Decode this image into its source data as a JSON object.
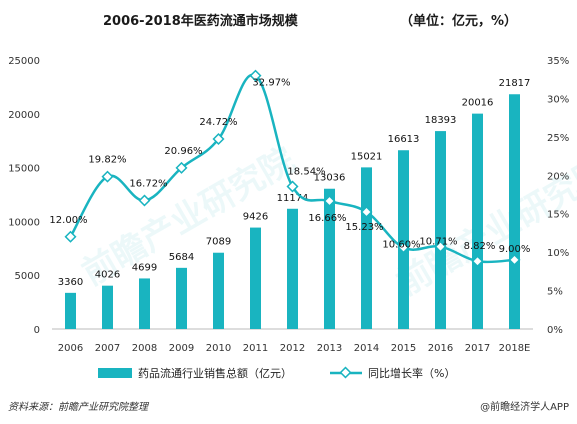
{
  "chart_data": {
    "type": "bar+line",
    "title": "2006-2018年医药流通市场规模",
    "unit_note": "（单位：亿元，%）",
    "categories": [
      "2006",
      "2007",
      "2008",
      "2009",
      "2010",
      "2011",
      "2012",
      "2013",
      "2014",
      "2015",
      "2016",
      "2017",
      "2018E"
    ],
    "series": [
      {
        "name": "药品流通行业销售总额（亿元）",
        "type": "bar",
        "axis": "left",
        "color": "#19b4c0",
        "values": [
          3360,
          4026,
          4699,
          5684,
          7089,
          9426,
          11174,
          13036,
          15021,
          16613,
          18393,
          20016,
          21817
        ],
        "labels": [
          "3360",
          "4026",
          "4699",
          "5684",
          "7089",
          "9426",
          "11174",
          "13036",
          "15021",
          "16613",
          "18393",
          "20016",
          "21817"
        ]
      },
      {
        "name": "同比增长率（%）",
        "type": "line",
        "axis": "right",
        "color": "#19b4c0",
        "values": [
          12.0,
          19.82,
          16.72,
          20.96,
          24.72,
          32.97,
          18.54,
          16.66,
          15.23,
          10.6,
          10.71,
          8.82,
          9.0
        ],
        "labels": [
          "12.00%",
          "19.82%",
          "16.72%",
          "20.96%",
          "24.72%",
          "32.97%",
          "18.54%",
          "16.66%",
          "15.23%",
          "10.60%",
          "10.71%",
          "8.82%",
          "9.00%"
        ]
      }
    ],
    "left_axis": {
      "min": 0,
      "max": 25000,
      "ticks": [
        0,
        5000,
        10000,
        15000,
        20000,
        25000
      ],
      "tick_labels": [
        "0",
        "5000",
        "10000",
        "15000",
        "20000",
        "25000"
      ]
    },
    "right_axis": {
      "min": 0,
      "max": 35,
      "ticks": [
        0,
        5,
        10,
        15,
        20,
        25,
        30,
        35
      ],
      "tick_labels": [
        "0%",
        "5%",
        "10%",
        "15%",
        "20%",
        "25%",
        "30%",
        "35%"
      ]
    },
    "grid": false,
    "legend_position": "bottom"
  },
  "footer": {
    "source": "资料来源：前瞻产业研究院整理",
    "brand": "@前瞻经济学人APP"
  },
  "watermark": "前瞻产业研究院"
}
